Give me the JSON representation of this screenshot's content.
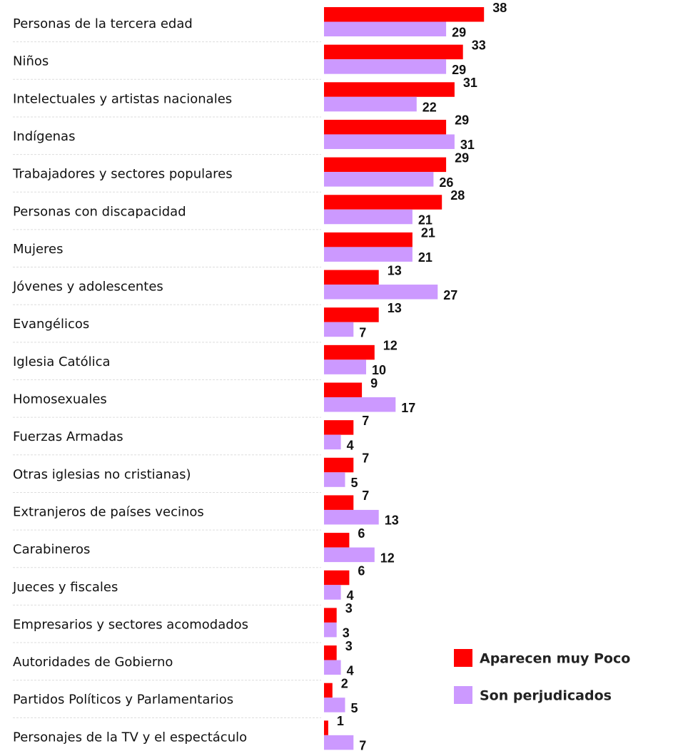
{
  "chart_data": {
    "type": "bar",
    "orientation": "horizontal",
    "categories": [
      "Personas de la tercera edad",
      "Niños",
      "Intelectuales y artistas nacionales",
      "Indígenas",
      "Trabajadores y sectores populares",
      "Personas con discapacidad",
      "Mujeres",
      "Jóvenes y adolescentes",
      "Evangélicos",
      "Iglesia Católica",
      "Homosexuales",
      "Fuerzas Armadas",
      "Otras iglesias no cristianas)",
      "Extranjeros de países vecinos",
      "Carabineros",
      "Jueces y fiscales",
      "Empresarios y sectores acomodados",
      "Autoridades de Gobierno",
      "Partidos Políticos y Parlamentarios",
      "Personajes de la TV y el espectáculo"
    ],
    "series": [
      {
        "name": "Aparecen muy Poco",
        "color": "#ff0000",
        "values": [
          38,
          33,
          31,
          29,
          29,
          28,
          21,
          13,
          13,
          12,
          9,
          7,
          7,
          7,
          6,
          6,
          3,
          3,
          2,
          1
        ]
      },
      {
        "name": "Son perjudicados",
        "color": "#cc99ff",
        "values": [
          29,
          29,
          22,
          31,
          26,
          21,
          21,
          27,
          7,
          10,
          17,
          4,
          5,
          13,
          12,
          4,
          3,
          4,
          5,
          7
        ]
      }
    ],
    "legend": "lower right"
  }
}
